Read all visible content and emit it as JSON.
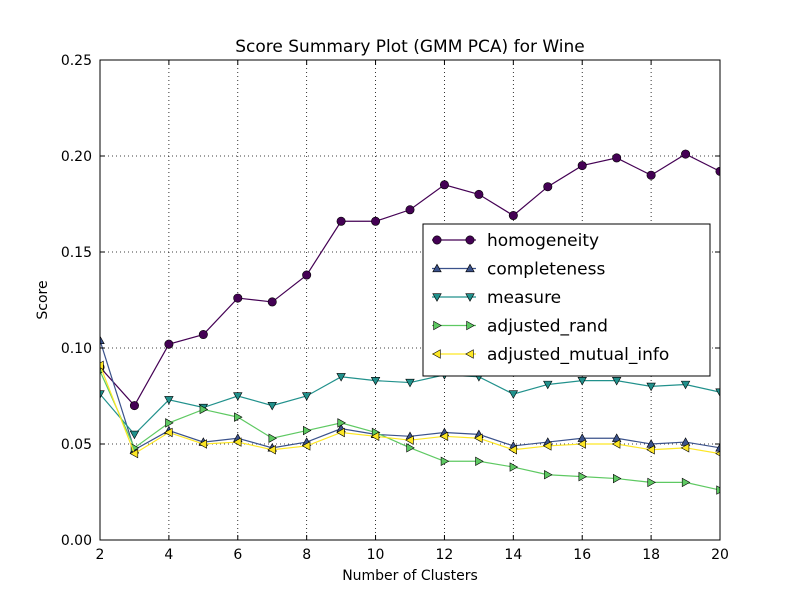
{
  "chart_data": {
    "type": "line",
    "title": "Score Summary Plot (GMM PCA) for Wine",
    "xlabel": "Number of Clusters",
    "ylabel": "Score",
    "xlim": [
      2,
      20
    ],
    "ylim": [
      0,
      0.25
    ],
    "grid": true,
    "legend_position": "center-right",
    "x_ticks": [
      "2",
      "4",
      "6",
      "8",
      "10",
      "12",
      "14",
      "16",
      "18",
      "20"
    ],
    "y_ticks": [
      "0.00",
      "0.05",
      "0.10",
      "0.15",
      "0.20",
      "0.25"
    ],
    "x": [
      2,
      3,
      4,
      5,
      6,
      7,
      8,
      9,
      10,
      11,
      12,
      13,
      14,
      15,
      16,
      17,
      18,
      19,
      20
    ],
    "series": [
      {
        "name": "homogeneity",
        "color": "#440154",
        "marker": "circle",
        "values": [
          0.09,
          0.07,
          0.102,
          0.107,
          0.126,
          0.124,
          0.138,
          0.166,
          0.166,
          0.172,
          0.185,
          0.18,
          0.169,
          0.184,
          0.195,
          0.199,
          0.19,
          0.201,
          0.192
        ]
      },
      {
        "name": "completeness",
        "color": "#3b528b",
        "marker": "triangle-up",
        "values": [
          0.104,
          0.047,
          0.057,
          0.051,
          0.053,
          0.048,
          0.051,
          0.058,
          0.055,
          0.054,
          0.056,
          0.055,
          0.049,
          0.051,
          0.053,
          0.053,
          0.05,
          0.051,
          0.048
        ]
      },
      {
        "name": "measure",
        "color": "#21918c",
        "marker": "triangle-down",
        "values": [
          0.076,
          0.055,
          0.073,
          0.069,
          0.075,
          0.07,
          0.075,
          0.085,
          0.083,
          0.082,
          0.086,
          0.085,
          0.076,
          0.081,
          0.083,
          0.083,
          0.08,
          0.081,
          0.077
        ]
      },
      {
        "name": "adjusted_rand",
        "color": "#5ec962",
        "marker": "triangle-right",
        "values": [
          0.088,
          0.048,
          0.061,
          0.068,
          0.064,
          0.053,
          0.057,
          0.061,
          0.056,
          0.048,
          0.041,
          0.041,
          0.038,
          0.034,
          0.033,
          0.032,
          0.03,
          0.03,
          0.026
        ]
      },
      {
        "name": "adjusted_mutual_info",
        "color": "#fde725",
        "marker": "triangle-left",
        "values": [
          0.091,
          0.045,
          0.056,
          0.05,
          0.051,
          0.047,
          0.049,
          0.056,
          0.054,
          0.052,
          0.054,
          0.053,
          0.047,
          0.049,
          0.05,
          0.05,
          0.047,
          0.048,
          0.045
        ]
      }
    ]
  }
}
